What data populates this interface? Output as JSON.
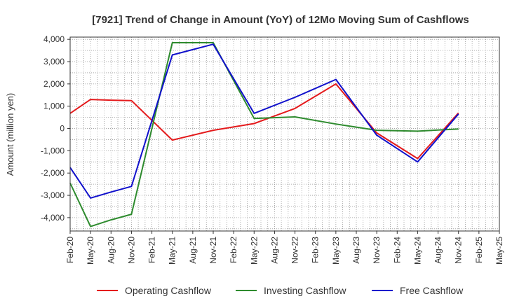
{
  "chart_data": {
    "type": "line",
    "title": "[7921]  Trend of Change in Amount (YoY) of 12Mo Moving Sum of Cashflows",
    "xlabel": "",
    "ylabel": "Amount (million yen)",
    "ylim": [
      -4600,
      4100
    ],
    "yticks": [
      4000,
      3000,
      2000,
      1000,
      0,
      -1000,
      -2000,
      -3000,
      -4000
    ],
    "ytick_labels": [
      "4,000",
      "3,000",
      "2,000",
      "1,000",
      "0",
      "-1,000",
      "-2,000",
      "-3,000",
      "-4,000"
    ],
    "categories": [
      "Feb-20",
      "May-20",
      "Aug-20",
      "Nov-20",
      "Feb-21",
      "May-21",
      "Aug-21",
      "Nov-21",
      "Feb-22",
      "May-22",
      "Aug-22",
      "Nov-22",
      "Feb-23",
      "May-23",
      "Aug-23",
      "Nov-23",
      "Feb-24",
      "May-24",
      "Aug-24",
      "Nov-24",
      "Feb-25",
      "May-25"
    ],
    "grid": true,
    "legend_position": "bottom",
    "series": [
      {
        "name": "Operating Cashflow",
        "color": "#e41a1c",
        "values": [
          680,
          1300,
          1270,
          1250,
          null,
          -520,
          null,
          -80,
          null,
          220,
          null,
          900,
          null,
          2000,
          null,
          -200,
          null,
          -1350,
          null,
          700,
          null,
          null
        ]
      },
      {
        "name": "Investing Cashflow",
        "color": "#2e8b2e",
        "values": [
          -2450,
          -4400,
          -4100,
          -3850,
          null,
          3850,
          null,
          3850,
          null,
          450,
          null,
          520,
          null,
          200,
          null,
          -80,
          null,
          -120,
          null,
          -20,
          null,
          null
        ]
      },
      {
        "name": "Free Cashflow",
        "color": "#1010cc",
        "values": [
          -1750,
          -3120,
          -2850,
          -2600,
          null,
          3300,
          null,
          3780,
          null,
          680,
          null,
          1400,
          null,
          2200,
          null,
          -300,
          null,
          -1500,
          null,
          650,
          null,
          null
        ]
      }
    ]
  }
}
